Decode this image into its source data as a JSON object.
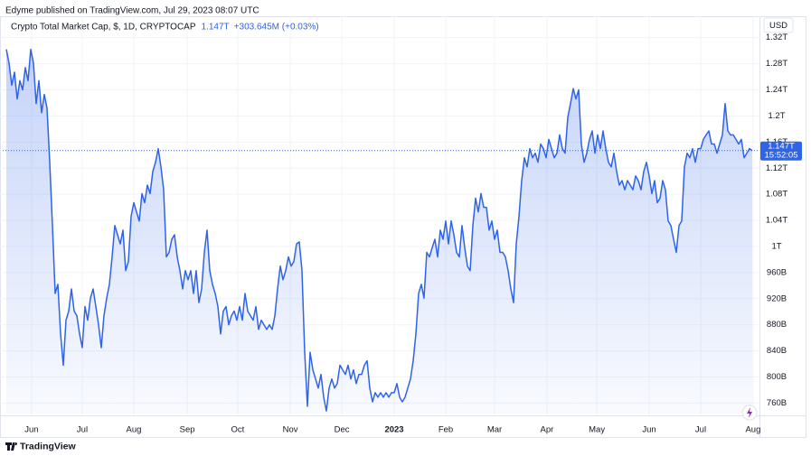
{
  "published": "Edyme published on TradingView.com, Jul 29, 2023 08:07 UTC",
  "brand": "TradingView",
  "chart_data": {
    "type": "line",
    "title": "Crypto Total Market Cap, $, 1D, CRYPTOCAP",
    "last_value_label": "1.147T",
    "change_label": "+303.645M (+0.03%)",
    "currency": "USD",
    "time_label": "15:52:05",
    "color": "#2f63e8",
    "values": [
      1302,
      1281,
      1247,
      1267,
      1226,
      1254,
      1240,
      1274,
      1254,
      1302,
      1281,
      1219,
      1254,
      1205,
      1233,
      1212,
      1129,
      1032,
      928,
      942,
      866,
      818,
      887,
      901,
      935,
      901,
      894,
      866,
      845,
      908,
      887,
      921,
      935,
      908,
      880,
      845,
      894,
      921,
      942,
      984,
      1032,
      1018,
      1004,
      1025,
      963,
      977,
      1046,
      1067,
      1053,
      1039,
      1081,
      1067,
      1094,
      1081,
      1115,
      1129,
      1150,
      1122,
      1087,
      984,
      991,
      1011,
      1018,
      984,
      963,
      935,
      963,
      949,
      963,
      928,
      963,
      914,
      935,
      991,
      1025,
      963,
      942,
      928,
      908,
      866,
      901,
      908,
      880,
      894,
      901,
      887,
      908,
      887,
      928,
      901,
      894,
      887,
      908,
      873,
      887,
      880,
      873,
      880,
      873,
      894,
      935,
      970,
      949,
      963,
      984,
      970,
      977,
      1004,
      1007,
      963,
      838,
      755,
      838,
      811,
      797,
      783,
      804,
      769,
      748,
      783,
      797,
      783,
      790,
      818,
      811,
      804,
      818,
      797,
      811,
      790,
      804,
      804,
      818,
      825,
      783,
      762,
      776,
      769,
      776,
      769,
      776,
      769,
      776,
      776,
      790,
      769,
      762,
      769,
      783,
      797,
      825,
      866,
      928,
      942,
      921,
      991,
      984,
      998,
      1011,
      984,
      1025,
      1011,
      1039,
      1004,
      1039,
      1018,
      991,
      984,
      1032,
      998,
      970,
      963,
      1032,
      1074,
      1053,
      1081,
      1060,
      1060,
      1025,
      1039,
      1011,
      1025,
      991,
      991,
      984,
      963,
      935,
      914,
      1004,
      1046,
      1101,
      1136,
      1122,
      1150,
      1136,
      1143,
      1129,
      1157,
      1150,
      1136,
      1164,
      1150,
      1136,
      1143,
      1171,
      1150,
      1143,
      1198,
      1219,
      1242,
      1226,
      1240,
      1157,
      1129,
      1143,
      1164,
      1177,
      1143,
      1171,
      1150,
      1177,
      1150,
      1129,
      1122,
      1143,
      1115,
      1094,
      1101,
      1087,
      1101,
      1094,
      1087,
      1108,
      1101,
      1087,
      1115,
      1129,
      1108,
      1081,
      1101,
      1067,
      1074,
      1101,
      1087,
      1039,
      1032,
      1011,
      991,
      1032,
      1039,
      1122,
      1143,
      1136,
      1150,
      1129,
      1150,
      1150,
      1164,
      1171,
      1177,
      1157,
      1157,
      1143,
      1157,
      1171,
      1219,
      1177,
      1171,
      1171,
      1164,
      1157,
      1164,
      1136,
      1143,
      1150,
      1147
    ],
    "xlim": [
      -0.67,
      274.33
    ],
    "xticks": [
      {
        "value": 9.3,
        "label": "Jun"
      },
      {
        "value": 28,
        "label": "Jul"
      },
      {
        "value": 47,
        "label": "Aug"
      },
      {
        "value": 66.7,
        "label": "Sep"
      },
      {
        "value": 85.3,
        "label": "Oct"
      },
      {
        "value": 104.7,
        "label": "Nov"
      },
      {
        "value": 123.7,
        "label": "Dec"
      },
      {
        "value": 143,
        "label": "2023"
      },
      {
        "value": 162,
        "label": "Feb"
      },
      {
        "value": 180,
        "label": "Mar"
      },
      {
        "value": 199.3,
        "label": "Apr"
      },
      {
        "value": 217.7,
        "label": "May"
      },
      {
        "value": 237,
        "label": "Jun"
      },
      {
        "value": 256,
        "label": "Jul"
      },
      {
        "value": 275.3,
        "label": "Aug"
      }
    ],
    "ylim": [
      744,
      1350
    ],
    "yticks": [
      {
        "value": 760,
        "label": "760B"
      },
      {
        "value": 800,
        "label": "800B"
      },
      {
        "value": 840,
        "label": "840B"
      },
      {
        "value": 880,
        "label": "880B"
      },
      {
        "value": 920,
        "label": "920B"
      },
      {
        "value": 960,
        "label": "960B"
      },
      {
        "value": 1000,
        "label": "1T"
      },
      {
        "value": 1040,
        "label": "1.04T"
      },
      {
        "value": 1080,
        "label": "1.08T"
      },
      {
        "value": 1120,
        "label": "1.12T"
      },
      {
        "value": 1160,
        "label": "1.16T"
      },
      {
        "value": 1200,
        "label": "1.2T"
      },
      {
        "value": 1240,
        "label": "1.24T"
      },
      {
        "value": 1280,
        "label": "1.28T"
      },
      {
        "value": 1320,
        "label": "1.32T"
      }
    ],
    "grid": true
  }
}
